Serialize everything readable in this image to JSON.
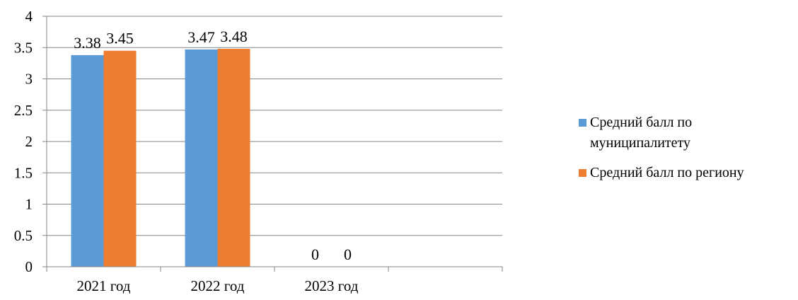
{
  "chart_data": {
    "type": "bar",
    "categories": [
      "2021 год",
      "2022 год",
      "2023 год"
    ],
    "series": [
      {
        "name": "Средний балл по муниципалитету",
        "legend_lines": [
          "Средний балл по",
          "муниципалитету"
        ],
        "values": [
          3.38,
          3.47,
          0
        ],
        "labels": [
          "3.38",
          "3.47",
          "0"
        ],
        "color": "#5b9bd5"
      },
      {
        "name": "Средний балл по региону",
        "legend_lines": [
          "Средний балл по региону"
        ],
        "values": [
          3.45,
          3.48,
          0
        ],
        "labels": [
          "3.45",
          "3.48",
          "0"
        ],
        "color": "#ed7d31"
      }
    ],
    "ylim": [
      0,
      4
    ],
    "yticks": [
      "0",
      "0.5",
      "1",
      "1.5",
      "2",
      "2.5",
      "3",
      "3.5",
      "4"
    ],
    "grid": true,
    "legend_position": "right",
    "colors": {
      "grid": "#868686",
      "axis": "#868686"
    }
  }
}
